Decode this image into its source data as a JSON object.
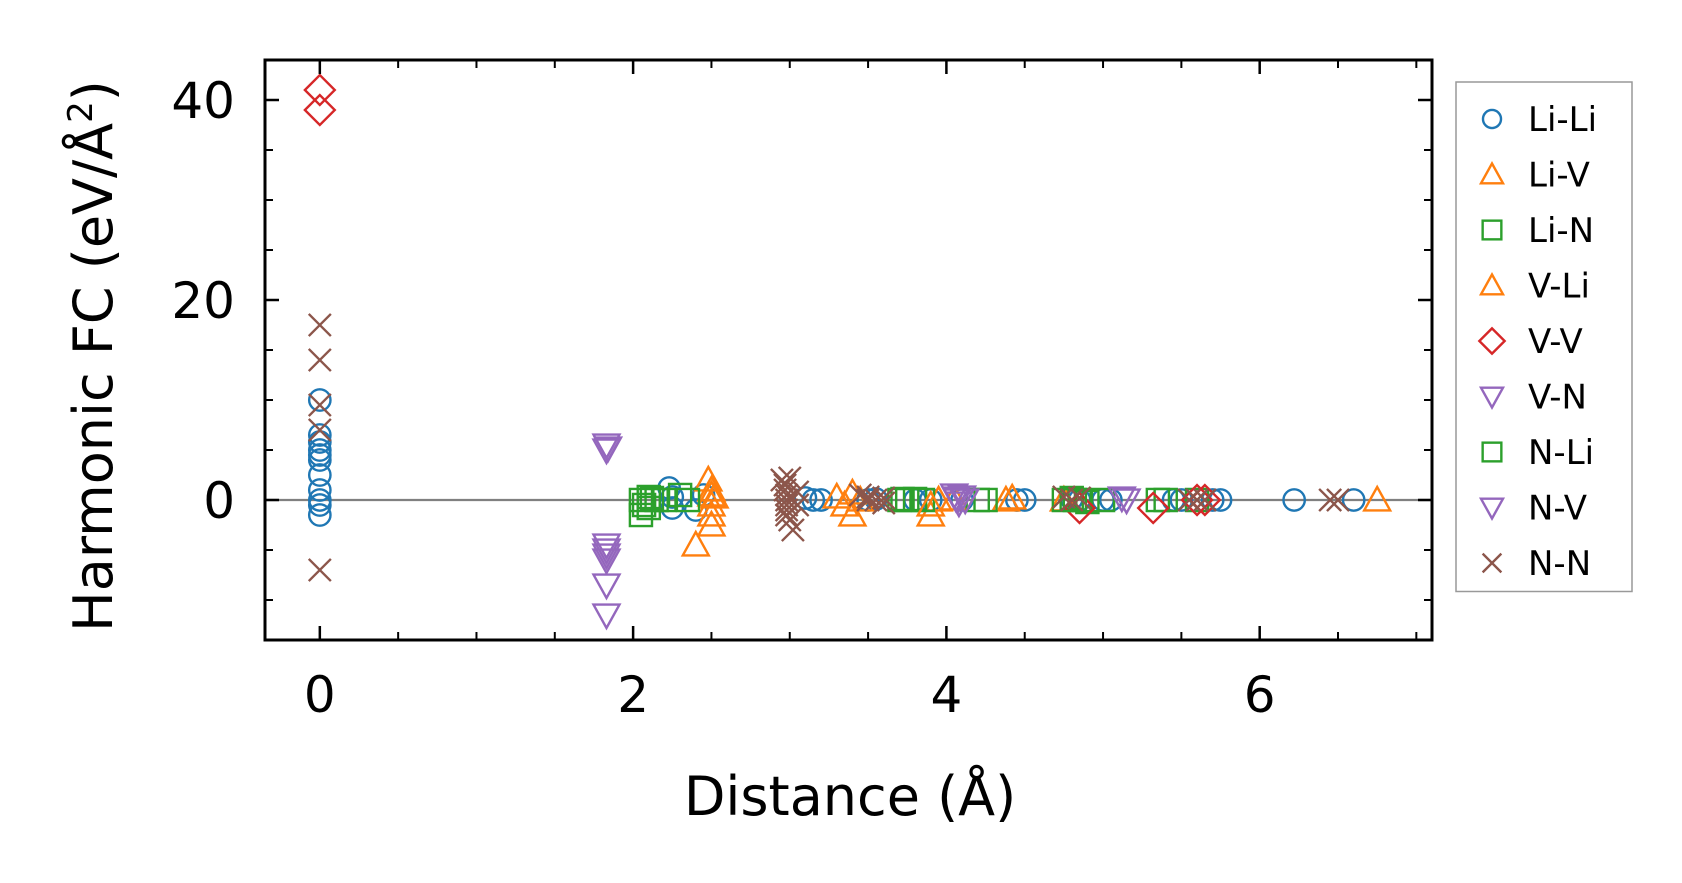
{
  "chart_data": {
    "type": "scatter",
    "title": "",
    "xlabel": "Distance (Å)",
    "ylabel_main": "Harmonic FC (eV/Å",
    "ylabel_sup": "2",
    "ylabel_end": ")",
    "xlim": [
      -0.35,
      7.1
    ],
    "ylim": [
      -14,
      44
    ],
    "xticks": [
      0,
      2,
      4,
      6
    ],
    "xtick_labels": [
      "0",
      "2",
      "4",
      "6"
    ],
    "yticks": [
      0,
      20,
      40
    ],
    "ytick_labels": [
      "0",
      "20",
      "40"
    ],
    "zero_line": true,
    "grid": false,
    "legend_position": "outside-right",
    "series": [
      {
        "name": "Li-Li",
        "marker": "circle",
        "color": "#1f77b4",
        "points": [
          [
            0,
            10
          ],
          [
            0,
            6.5
          ],
          [
            0,
            5.8
          ],
          [
            0,
            5
          ],
          [
            0,
            4.5
          ],
          [
            0,
            4
          ],
          [
            0,
            2.5
          ],
          [
            0,
            1
          ],
          [
            0,
            0
          ],
          [
            0,
            -0.5
          ],
          [
            0,
            -1.5
          ],
          [
            2.23,
            1.2
          ],
          [
            2.25,
            0.3
          ],
          [
            2.25,
            -0.8
          ],
          [
            2.4,
            -1
          ],
          [
            2.45,
            0.5
          ],
          [
            3.1,
            0.2
          ],
          [
            3.15,
            0
          ],
          [
            3.2,
            0
          ],
          [
            3.5,
            0
          ],
          [
            3.55,
            0.1
          ],
          [
            3.8,
            0
          ],
          [
            3.9,
            0
          ],
          [
            4.1,
            0
          ],
          [
            4.45,
            0
          ],
          [
            4.5,
            0
          ],
          [
            4.8,
            0.1
          ],
          [
            4.85,
            0
          ],
          [
            5.0,
            0
          ],
          [
            5.05,
            0
          ],
          [
            5.45,
            0
          ],
          [
            5.5,
            0
          ],
          [
            5.7,
            0
          ],
          [
            5.75,
            0
          ],
          [
            6.22,
            0
          ],
          [
            6.6,
            0
          ]
        ]
      },
      {
        "name": "Li-V",
        "marker": "triangle-up",
        "color": "#ff7f0e",
        "points": [
          [
            2.4,
            -4.5
          ],
          [
            2.48,
            2
          ],
          [
            2.5,
            -2.5
          ],
          [
            2.5,
            -1.5
          ],
          [
            2.5,
            0.5
          ],
          [
            2.5,
            1
          ],
          [
            2.5,
            -0.5
          ],
          [
            3.3,
            0.3
          ],
          [
            3.35,
            -0.5
          ],
          [
            3.4,
            0.7
          ],
          [
            3.4,
            -1.5
          ],
          [
            3.9,
            -1.5
          ],
          [
            3.95,
            0
          ],
          [
            4.05,
            0.1
          ],
          [
            4.38,
            0
          ],
          [
            4.75,
            0
          ],
          [
            6.75,
            0
          ]
        ]
      },
      {
        "name": "Li-N",
        "marker": "square",
        "color": "#2ca02c",
        "points": [
          [
            2.05,
            -1.5
          ],
          [
            2.05,
            0
          ],
          [
            2.07,
            -0.5
          ],
          [
            2.1,
            0.3
          ],
          [
            2.1,
            -0.8
          ],
          [
            2.15,
            0
          ],
          [
            2.2,
            0
          ],
          [
            2.3,
            0.5
          ],
          [
            2.35,
            0
          ],
          [
            3.7,
            0
          ],
          [
            3.75,
            0
          ],
          [
            3.8,
            0.1
          ],
          [
            3.85,
            0
          ],
          [
            4.2,
            0
          ],
          [
            4.25,
            0
          ],
          [
            4.75,
            0
          ],
          [
            4.8,
            0.2
          ],
          [
            4.85,
            0
          ],
          [
            4.9,
            -0.2
          ],
          [
            5.0,
            0
          ],
          [
            5.35,
            0
          ],
          [
            5.4,
            0
          ],
          [
            5.6,
            0
          ]
        ]
      },
      {
        "name": "V-Li",
        "marker": "triangle-up",
        "color": "#ff7f0e",
        "points": [
          [
            2.52,
            0.3
          ],
          [
            3.45,
            0
          ],
          [
            3.9,
            -0.5
          ],
          [
            4.42,
            0.2
          ]
        ]
      },
      {
        "name": "V-V",
        "marker": "diamond",
        "color": "#d62728",
        "points": [
          [
            0,
            41
          ],
          [
            0,
            39
          ],
          [
            4.85,
            -0.8
          ],
          [
            5.32,
            -0.8
          ],
          [
            5.6,
            0
          ],
          [
            5.65,
            0
          ]
        ]
      },
      {
        "name": "V-N",
        "marker": "triangle-down",
        "color": "#9467bd",
        "points": [
          [
            1.83,
            5.5
          ],
          [
            1.83,
            5
          ],
          [
            1.83,
            -4.5
          ],
          [
            1.83,
            -5
          ],
          [
            1.83,
            -5.5
          ],
          [
            1.83,
            -6
          ],
          [
            1.83,
            -8.5
          ],
          [
            1.83,
            -11.5
          ],
          [
            4.05,
            0.5
          ],
          [
            4.07,
            0
          ],
          [
            4.08,
            -0.3
          ],
          [
            4.1,
            0.3
          ],
          [
            4.12,
            0
          ],
          [
            5.15,
            0
          ]
        ]
      },
      {
        "name": "N-Li",
        "marker": "square",
        "color": "#2ca02c",
        "points": [
          [
            2.12,
            0.2
          ],
          [
            3.72,
            0.1
          ],
          [
            4.82,
            0
          ]
        ]
      },
      {
        "name": "N-V",
        "marker": "triangle-down",
        "color": "#9467bd",
        "points": [
          [
            1.84,
            5.2
          ],
          [
            4.06,
            0.2
          ],
          [
            5.12,
            0.2
          ]
        ]
      },
      {
        "name": "N-N",
        "marker": "x",
        "color": "#8c564b",
        "points": [
          [
            0,
            17.5
          ],
          [
            0,
            14
          ],
          [
            0,
            9.5
          ],
          [
            0,
            7
          ],
          [
            0,
            -7
          ],
          [
            2.95,
            2
          ],
          [
            2.97,
            1.5
          ],
          [
            2.97,
            1
          ],
          [
            2.98,
            0.5
          ],
          [
            2.98,
            0
          ],
          [
            2.98,
            -0.5
          ],
          [
            2.98,
            -1
          ],
          [
            2.98,
            -1.5
          ],
          [
            3.0,
            2.2
          ],
          [
            3.0,
            -2
          ],
          [
            3.02,
            -3
          ],
          [
            3.05,
            0.8
          ],
          [
            3.05,
            -0.5
          ],
          [
            3.45,
            0.5
          ],
          [
            3.5,
            0.3
          ],
          [
            3.5,
            0
          ],
          [
            3.55,
            0
          ],
          [
            3.6,
            -0.3
          ],
          [
            3.6,
            0.2
          ],
          [
            4.75,
            0.3
          ],
          [
            4.8,
            0
          ],
          [
            4.85,
            0.2
          ],
          [
            5.55,
            0
          ],
          [
            5.6,
            0
          ],
          [
            5.65,
            0
          ],
          [
            6.45,
            0
          ],
          [
            6.5,
            0
          ]
        ]
      }
    ]
  }
}
